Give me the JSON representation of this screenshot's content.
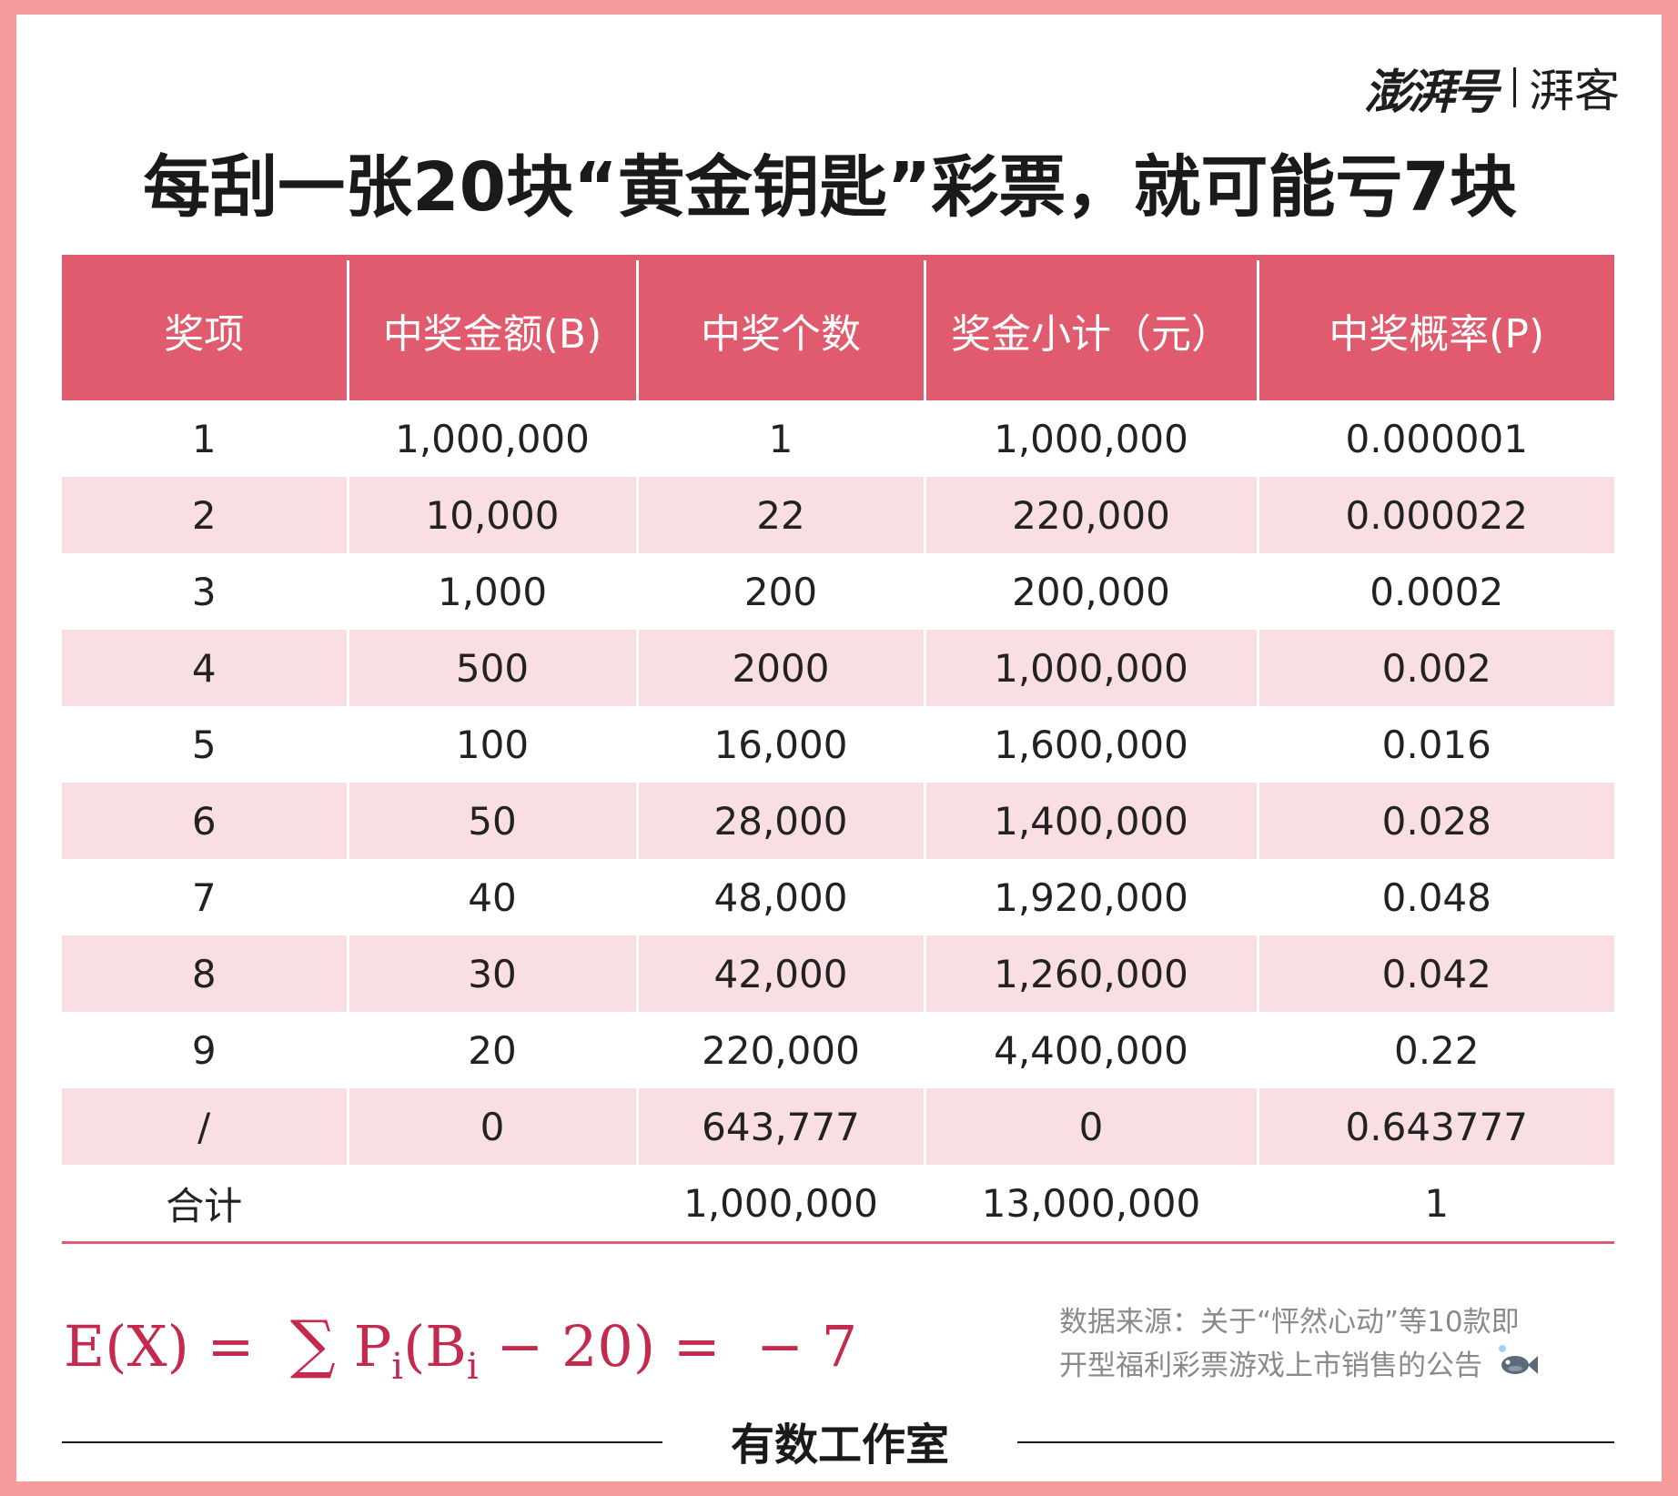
{
  "brand": {
    "name": "澎湃号",
    "sub": "湃客"
  },
  "title": "每刮一张20块“黄金钥匙”彩票，就可能亏7块",
  "table": {
    "headers": [
      "奖项",
      "中奖金额(B)",
      "中奖个数",
      "奖金小计（元）",
      "中奖概率(P)"
    ],
    "rows": [
      [
        "1",
        "1,000,000",
        "1",
        "1,000,000",
        "0.000001"
      ],
      [
        "2",
        "10,000",
        "22",
        "220,000",
        "0.000022"
      ],
      [
        "3",
        "1,000",
        "200",
        "200,000",
        "0.0002"
      ],
      [
        "4",
        "500",
        "2000",
        "1,000,000",
        "0.002"
      ],
      [
        "5",
        "100",
        "16,000",
        "1,600,000",
        "0.016"
      ],
      [
        "6",
        "50",
        "28,000",
        "1,400,000",
        "0.028"
      ],
      [
        "7",
        "40",
        "48,000",
        "1,920,000",
        "0.048"
      ],
      [
        "8",
        "30",
        "42,000",
        "1,260,000",
        "0.042"
      ],
      [
        "9",
        "20",
        "220,000",
        "4,400,000",
        "0.22"
      ],
      [
        "/",
        "0",
        "643,777",
        "0",
        "0.643777"
      ],
      [
        "合计",
        "",
        "1,000,000",
        "13,000,000",
        "1"
      ]
    ]
  },
  "formula": {
    "lhs": "E(X) =  ",
    "sigma": "∑",
    "p": "P",
    "sub_i": "i",
    "open": "(B",
    "rest": " − 20) =  − 7"
  },
  "source": {
    "line1": "数据来源：关于“怦然心动”等10款即",
    "line2": "开型福利彩票游戏上市销售的公告"
  },
  "footer": "有数工作室",
  "colors": {
    "border": "#f79a9b",
    "header": "#e05b6e",
    "band": "#f9dfe3",
    "formula": "#c42a4d"
  }
}
